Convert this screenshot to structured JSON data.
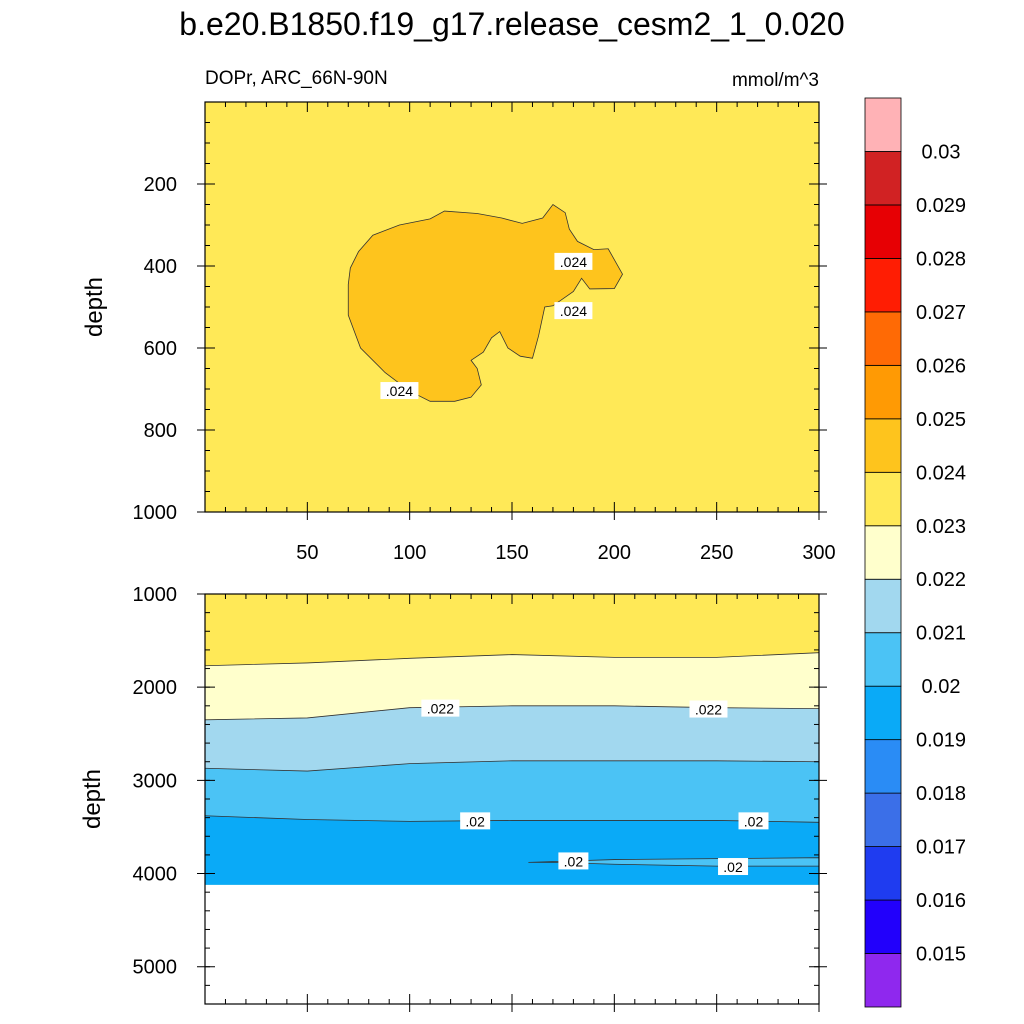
{
  "title": "b.e20.B1850.f19_g17.release_cesm2_1_0.020",
  "subtitle_left": "DOPr, ARC_66N-90N",
  "subtitle_right": "mmol/m^3",
  "chart_data": [
    {
      "type": "contour",
      "panel": "upper",
      "ylabel": "depth",
      "xlabel": "",
      "x_range": [
        0,
        300
      ],
      "y_range": [
        0,
        1000
      ],
      "y_reversed": true,
      "x_ticks": [
        "50",
        "100",
        "150",
        "200",
        "250",
        "300"
      ],
      "y_ticks": [
        "200",
        "400",
        "600",
        "800",
        "1000"
      ],
      "background_level": "0.023-0.024",
      "regions": [
        {
          "level": "0.024-0.025",
          "label": ".024",
          "outline": [
            [
              70,
              445
            ],
            [
              71,
              405
            ],
            [
              75,
              365
            ],
            [
              82,
              325
            ],
            [
              95,
              300
            ],
            [
              110,
              285
            ],
            [
              117,
              266
            ],
            [
              133,
              272
            ],
            [
              145,
              283
            ],
            [
              155,
              296
            ],
            [
              165,
              283
            ],
            [
              170,
              250
            ],
            [
              176,
              270
            ],
            [
              178,
              310
            ],
            [
              182,
              340
            ],
            [
              190,
              360
            ],
            [
              197,
              358
            ],
            [
              204,
              420
            ],
            [
              200,
              455
            ],
            [
              188,
              456
            ],
            [
              184,
              430
            ],
            [
              180,
              462
            ],
            [
              170,
              497
            ],
            [
              166,
              500
            ],
            [
              163,
              570
            ],
            [
              160,
              625
            ],
            [
              154,
              620
            ],
            [
              148,
              600
            ],
            [
              144,
              560
            ],
            [
              140,
              575
            ],
            [
              136,
              610
            ],
            [
              130,
              630
            ],
            [
              133,
              650
            ],
            [
              135,
              690
            ],
            [
              130,
              720
            ],
            [
              122,
              730
            ],
            [
              110,
              730
            ],
            [
              100,
              705
            ],
            [
              88,
              660
            ],
            [
              76,
              600
            ],
            [
              70,
              520
            ]
          ]
        }
      ],
      "contour_labels": [
        {
          "text": ".024",
          "x": 95,
          "y": 705
        },
        {
          "text": ".024",
          "x": 180,
          "y": 390
        },
        {
          "text": ".024",
          "x": 180,
          "y": 510
        }
      ]
    },
    {
      "type": "contour",
      "panel": "lower",
      "ylabel": "depth",
      "xlabel": "",
      "x_range": [
        0,
        300
      ],
      "y_range": [
        1000,
        5400
      ],
      "y_reversed": true,
      "x_ticks": [],
      "y_ticks": [
        "1000",
        "2000",
        "3000",
        "4000",
        "5000"
      ],
      "data_bottom_depth": 4120,
      "layers": [
        {
          "level": "0.023-0.024",
          "top": [
            [
              0,
              1000
            ],
            [
              300,
              1000
            ]
          ]
        },
        {
          "level": "0.022-0.023",
          "top": [
            [
              0,
              1770
            ],
            [
              50,
              1740
            ],
            [
              100,
              1690
            ],
            [
              150,
              1650
            ],
            [
              200,
              1680
            ],
            [
              250,
              1680
            ],
            [
              300,
              1630
            ]
          ]
        },
        {
          "level": "0.021-0.022",
          "top": [
            [
              0,
              2350
            ],
            [
              50,
              2330
            ],
            [
              100,
              2220
            ],
            [
              150,
              2200
            ],
            [
              200,
              2200
            ],
            [
              250,
              2220
            ],
            [
              300,
              2230
            ]
          ]
        },
        {
          "level": "0.020-0.021",
          "top": [
            [
              0,
              2870
            ],
            [
              50,
              2900
            ],
            [
              100,
              2820
            ],
            [
              150,
              2790
            ],
            [
              200,
              2790
            ],
            [
              250,
              2790
            ],
            [
              300,
              2800
            ]
          ]
        },
        {
          "level": "0.019-0.020",
          "top": [
            [
              0,
              3380
            ],
            [
              50,
              3420
            ],
            [
              100,
              3440
            ],
            [
              150,
              3430
            ],
            [
              200,
              3430
            ],
            [
              250,
              3430
            ],
            [
              300,
              3450
            ]
          ]
        }
      ],
      "regions": [
        {
          "level": "0.020-0.021",
          "outline": [
            [
              158,
              3880
            ],
            [
              200,
              3850
            ],
            [
              250,
              3840
            ],
            [
              300,
              3830
            ],
            [
              300,
              3920
            ],
            [
              250,
              3920
            ],
            [
              200,
              3900
            ],
            [
              170,
              3880
            ]
          ]
        }
      ],
      "contour_labels": [
        {
          "text": ".022",
          "x": 115,
          "y": 2230
        },
        {
          "text": ".022",
          "x": 246,
          "y": 2240
        },
        {
          "text": ".02",
          "x": 132,
          "y": 3440
        },
        {
          "text": ".02",
          "x": 268,
          "y": 3440
        },
        {
          "text": ".02",
          "x": 180,
          "y": 3870
        },
        {
          "text": ".02",
          "x": 258,
          "y": 3930
        }
      ]
    }
  ],
  "colorbar": {
    "levels": [
      "0.015",
      "0.016",
      "0.017",
      "0.018",
      "0.019",
      "0.02",
      "0.021",
      "0.022",
      "0.023",
      "0.024",
      "0.025",
      "0.026",
      "0.027",
      "0.028",
      "0.029",
      "0.03"
    ],
    "colors": [
      "#8f28ee",
      "#2200fb",
      "#1f3cf0",
      "#3b6fe8",
      "#2a8cf5",
      "#0aaaf7",
      "#4bc3f5",
      "#a2d8ef",
      "#ffffcc",
      "#ffe957",
      "#fec41d",
      "#ff9a04",
      "#ff6a05",
      "#ff1d03",
      "#e70004",
      "#d12223",
      "#ffb2b6"
    ]
  }
}
